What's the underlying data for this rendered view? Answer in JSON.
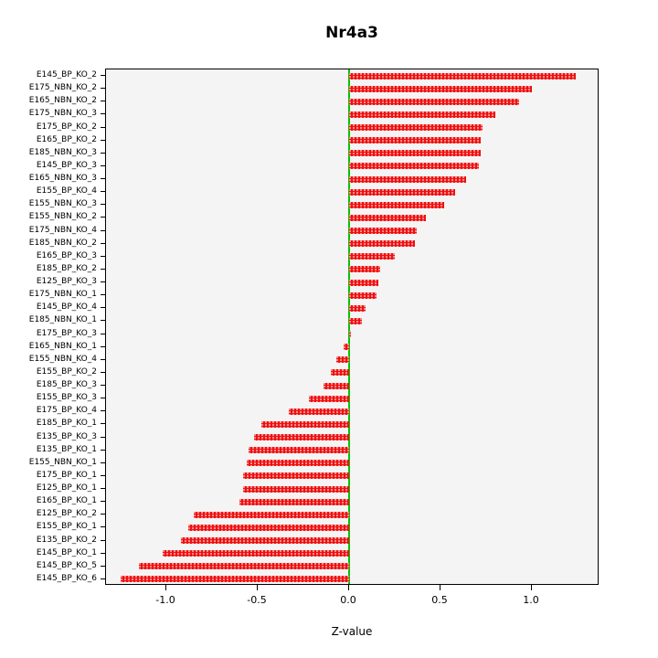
{
  "chart_data": {
    "type": "bar",
    "orientation": "horizontal",
    "title": "Nr4a3",
    "xlabel": "Z-value",
    "xlim": [
      -1.33,
      1.37
    ],
    "xticks": [
      -1.0,
      -0.5,
      0.0,
      0.5,
      1.0
    ],
    "xtick_labels": [
      "-1.0",
      "-0.5",
      "0.0",
      "0.5",
      "1.0"
    ],
    "grid": false,
    "bar_color": "#ee1111",
    "zero_line_color": "#00c400",
    "plot_background": "#f4f4f4",
    "categories": [
      "E145_BP_KO_2",
      "E175_NBN_KO_2",
      "E165_NBN_KO_2",
      "E175_NBN_KO_3",
      "E175_BP_KO_2",
      "E165_BP_KO_2",
      "E185_NBN_KO_3",
      "E145_BP_KO_3",
      "E165_NBN_KO_3",
      "E155_BP_KO_4",
      "E155_NBN_KO_3",
      "E155_NBN_KO_2",
      "E175_NBN_KO_4",
      "E185_NBN_KO_2",
      "E165_BP_KO_3",
      "E185_BP_KO_2",
      "E125_BP_KO_3",
      "E175_NBN_KO_1",
      "E145_BP_KO_4",
      "E185_NBN_KO_1",
      "E175_BP_KO_3",
      "E165_NBN_KO_1",
      "E155_NBN_KO_4",
      "E155_BP_KO_2",
      "E185_BP_KO_3",
      "E155_BP_KO_3",
      "E175_BP_KO_4",
      "E185_BP_KO_1",
      "E135_BP_KO_3",
      "E135_BP_KO_1",
      "E155_NBN_KO_1",
      "E175_BP_KO_1",
      "E125_BP_KO_1",
      "E165_BP_KO_1",
      "E125_BP_KO_2",
      "E155_BP_KO_1",
      "E135_BP_KO_2",
      "E145_BP_KO_1",
      "E145_BP_KO_5",
      "E145_BP_KO_6"
    ],
    "values": [
      1.24,
      1.0,
      0.93,
      0.8,
      0.73,
      0.72,
      0.72,
      0.71,
      0.64,
      0.58,
      0.52,
      0.42,
      0.37,
      0.36,
      0.25,
      0.17,
      0.16,
      0.15,
      0.09,
      0.07,
      0.01,
      -0.03,
      -0.07,
      -0.1,
      -0.14,
      -0.22,
      -0.33,
      -0.48,
      -0.52,
      -0.55,
      -0.56,
      -0.58,
      -0.58,
      -0.6,
      -0.85,
      -0.88,
      -0.92,
      -1.02,
      -1.15,
      -1.25
    ]
  }
}
